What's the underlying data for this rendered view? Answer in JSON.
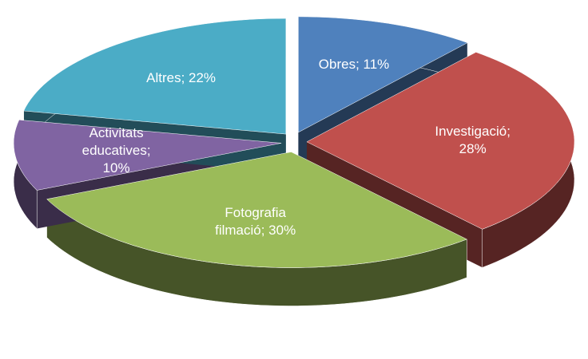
{
  "chart_data": {
    "type": "pie",
    "value_labels": [
      "Obres; 11%",
      "Investigació; 28%",
      "Fotografia filmació; 30%",
      "Activitats educatives; 10%",
      "Altres; 22%"
    ],
    "values": [
      11,
      28,
      30,
      10,
      22
    ],
    "colors": [
      "#4f81bd",
      "#c0504d",
      "#9bbb59",
      "#8064a2",
      "#4bacc6"
    ]
  }
}
